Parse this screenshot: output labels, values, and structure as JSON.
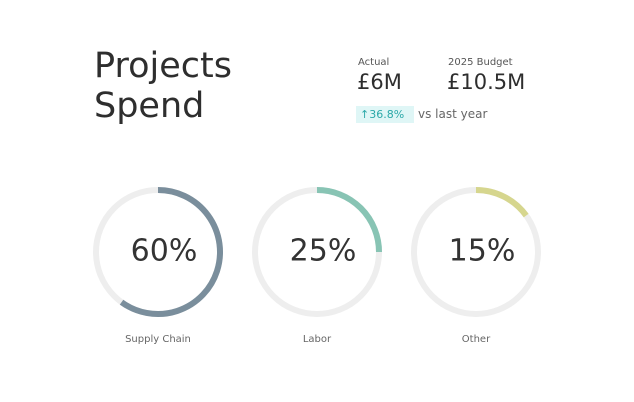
{
  "header": {
    "title": "Projects Spend",
    "actual_label": "Actual",
    "actual_value": "£6M",
    "budget_label": "2025 Budget",
    "budget_value": "£10.5M",
    "change": "↑36.8%",
    "change_note": "vs last year"
  },
  "chart_data": {
    "type": "ring",
    "categories": [
      "Supply Chain",
      "Labor",
      "Other"
    ],
    "values": [
      60,
      25,
      15
    ],
    "value_labels": [
      "60%",
      "25%",
      "15%"
    ],
    "colors": [
      "#7a8e9c",
      "#88c4b4",
      "#d6d68e"
    ],
    "track_color": "#eeeeee"
  }
}
